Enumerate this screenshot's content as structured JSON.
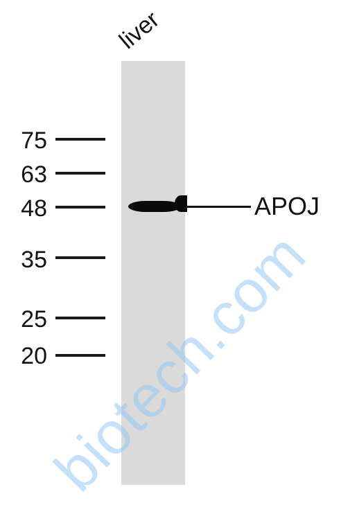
{
  "blot": {
    "lane_label": "liver",
    "protein_label": "APOJ",
    "markers": [
      "75",
      "63",
      "48",
      "35",
      "25",
      "20"
    ]
  },
  "watermark": {
    "text": "biotech.com",
    "color": "#96c8f5"
  },
  "colors": {
    "lane": "#dadada",
    "band": "#0a0a0a"
  }
}
